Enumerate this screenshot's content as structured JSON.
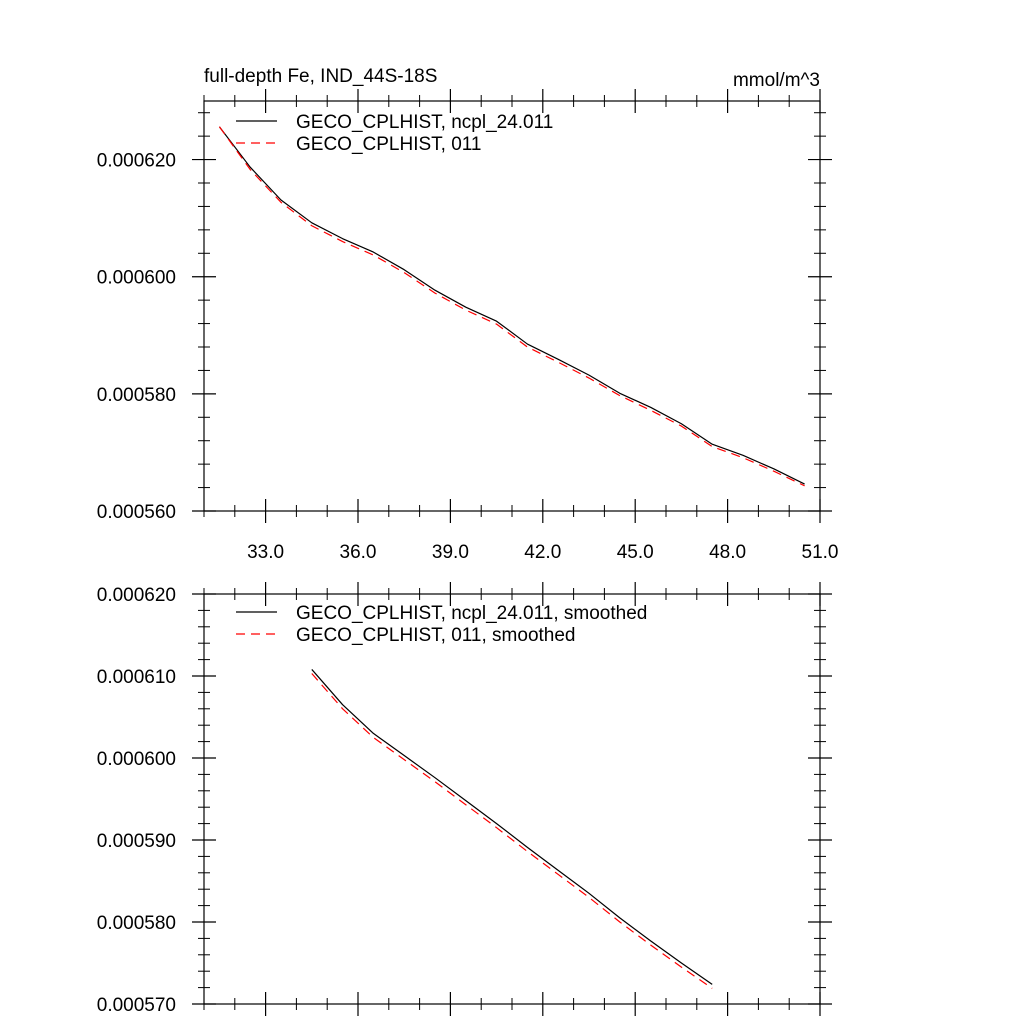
{
  "chart_data": [
    {
      "type": "line",
      "title": "full-depth Fe, IND_44S-18S",
      "units": "mmol/m^3",
      "xlim": [
        31.0,
        51.0
      ],
      "ylim": [
        0.00056,
        0.00063
      ],
      "xticks": [
        33,
        36,
        39,
        42,
        45,
        48,
        51
      ],
      "xtick_labels": [
        "33.0",
        "36.0",
        "39.0",
        "42.0",
        "45.0",
        "48.0",
        "51.0"
      ],
      "yticks": [
        0.00056,
        0.00058,
        0.0006,
        0.00062
      ],
      "ytick_labels": [
        "0.000560",
        "0.000580",
        "0.000600",
        "0.000620"
      ],
      "legend_position": "top-left",
      "grid": false,
      "series": [
        {
          "name": "GECO_CPLHIST, ncpl_24.011",
          "color": "#000000",
          "dash": "solid",
          "x": [
            31.5,
            32.5,
            33.5,
            34.5,
            35.5,
            36.5,
            37.5,
            38.5,
            39.5,
            40.5,
            41.5,
            42.5,
            43.5,
            44.5,
            45.5,
            46.5,
            47.5,
            48.5,
            49.5,
            50.5
          ],
          "y": [
            0.0006256,
            0.0006187,
            0.0006131,
            0.0006092,
            0.0006065,
            0.0006042,
            0.0006012,
            0.0005977,
            0.0005948,
            0.0005924,
            0.0005885,
            0.0005859,
            0.0005832,
            0.0005801,
            0.0005777,
            0.0005749,
            0.0005714,
            0.0005695,
            0.0005672,
            0.0005646
          ]
        },
        {
          "name": "GECO_CPLHIST, 011",
          "color": "#ff0000",
          "dash": "dashed",
          "x": [
            31.5,
            32.5,
            33.5,
            34.5,
            35.5,
            36.5,
            37.5,
            38.5,
            39.5,
            40.5,
            41.5,
            42.5,
            43.5,
            44.5,
            45.5,
            46.5,
            47.5,
            48.5,
            49.5,
            50.5
          ],
          "y": [
            0.0006256,
            0.0006183,
            0.0006127,
            0.0006087,
            0.000606,
            0.0006037,
            0.0006007,
            0.0005972,
            0.0005943,
            0.0005919,
            0.000588,
            0.0005854,
            0.0005827,
            0.0005797,
            0.0005772,
            0.0005745,
            0.000571,
            0.0005691,
            0.0005668,
            0.0005643
          ]
        }
      ]
    },
    {
      "type": "line",
      "title": "",
      "xlim": [
        31.0,
        51.0
      ],
      "ylim": [
        0.00057,
        0.00062
      ],
      "xticks": [
        33,
        36,
        39,
        42,
        45,
        48,
        51
      ],
      "yticks": [
        0.00057,
        0.00058,
        0.00059,
        0.0006,
        0.00061,
        0.00062
      ],
      "ytick_labels": [
        "0.000570",
        "0.000580",
        "0.000590",
        "0.000600",
        "0.000610",
        "0.000620"
      ],
      "legend_position": "top-left",
      "grid": false,
      "series": [
        {
          "name": "GECO_CPLHIST, ncpl_24.011, smoothed",
          "color": "#000000",
          "dash": "solid",
          "x": [
            34.5,
            35.5,
            36.5,
            37.5,
            38.5,
            39.5,
            40.5,
            41.5,
            42.5,
            43.5,
            44.5,
            45.5,
            46.5,
            47.5
          ],
          "y": [
            0.0006108,
            0.0006065,
            0.000603,
            0.0006003,
            0.0005976,
            0.0005948,
            0.000592,
            0.0005891,
            0.0005863,
            0.0005835,
            0.0005805,
            0.0005777,
            0.000575,
            0.0005724
          ]
        },
        {
          "name": "GECO_CPLHIST, 011, smoothed",
          "color": "#ff0000",
          "dash": "dashed",
          "x": [
            34.5,
            35.5,
            36.5,
            37.5,
            38.5,
            39.5,
            40.5,
            41.5,
            42.5,
            43.5,
            44.5,
            45.5,
            46.5,
            47.5
          ],
          "y": [
            0.0006103,
            0.000606,
            0.0006025,
            0.0005998,
            0.0005971,
            0.0005943,
            0.0005915,
            0.0005886,
            0.0005858,
            0.000583,
            0.00058,
            0.0005772,
            0.0005745,
            0.0005719
          ]
        }
      ]
    }
  ]
}
